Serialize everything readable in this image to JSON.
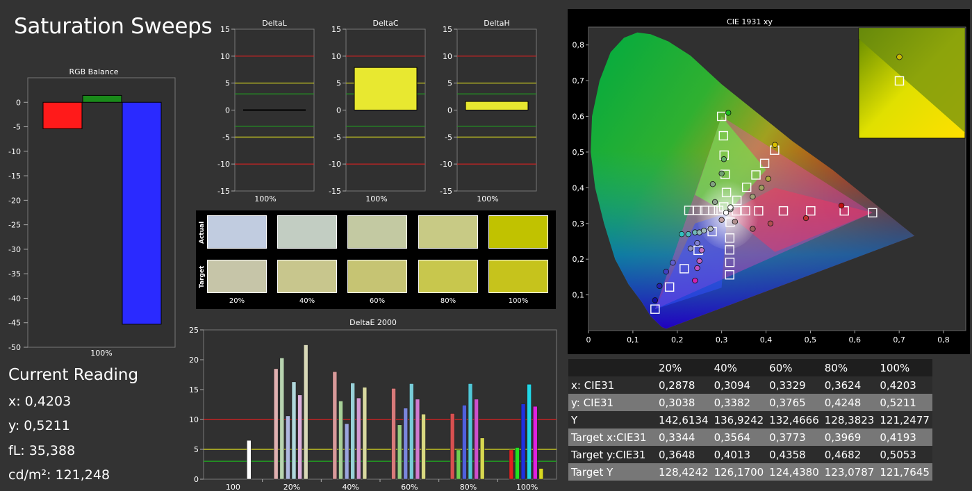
{
  "title": "Saturation Sweeps",
  "current_reading": {
    "heading": "Current Reading",
    "x_text": "x: 0,4203",
    "y_text": "y: 0,5211",
    "fl_text": "fL: 35,388",
    "cdm2_text": "cd/m²: 121,248"
  },
  "colors": {
    "background": "#333333",
    "red_line": "#e02020",
    "yellow_line": "#e0e020",
    "green_line": "#20a020",
    "bar_red": "#ff1a1a",
    "bar_green": "#1a8a1a",
    "bar_blue": "#2a2aff",
    "bar_yellow": "#e8e830"
  },
  "chart_data": [
    {
      "id": "rgb-balance",
      "type": "bar",
      "title": "RGB Balance",
      "categories": [
        "100%"
      ],
      "series": [
        {
          "color": "red",
          "values": [
            -5.4
          ]
        },
        {
          "color": "green",
          "values": [
            1.4
          ]
        },
        {
          "color": "blue",
          "values": [
            -45.3
          ]
        }
      ],
      "ylim": [
        -50,
        5
      ],
      "yticks": [
        "0",
        "-5",
        "-10",
        "-15",
        "-20",
        "-25",
        "-30",
        "-35",
        "-40",
        "-45",
        "-50"
      ]
    },
    {
      "id": "delta-l",
      "type": "bar",
      "title": "DeltaL",
      "categories": [
        "100%"
      ],
      "values": [
        0
      ],
      "ylim": [
        -15,
        15
      ],
      "yticks": [
        "15",
        "10",
        "5",
        "0",
        "-5",
        "-10",
        "-15"
      ]
    },
    {
      "id": "delta-c",
      "type": "bar",
      "title": "DeltaC",
      "categories": [
        "100%"
      ],
      "values": [
        7.9
      ],
      "ylim": [
        -15,
        15
      ],
      "yticks": [
        "15",
        "10",
        "5",
        "0",
        "-5",
        "-10",
        "-15"
      ]
    },
    {
      "id": "delta-h",
      "type": "bar",
      "title": "DeltaH",
      "categories": [
        "100%"
      ],
      "values": [
        1.6
      ],
      "ylim": [
        -15,
        15
      ],
      "yticks": [
        "15",
        "10",
        "5",
        "0",
        "-5",
        "-10",
        "-15"
      ]
    },
    {
      "id": "delta-e-2000",
      "type": "bar",
      "title": "DeltaE 2000",
      "categories": [
        "100",
        "20%",
        "40%",
        "60%",
        "80%",
        "100%"
      ],
      "groups": [
        {
          "label": "100",
          "bars": [
            {
              "value": 6.5,
              "color": "#ffffff"
            }
          ]
        },
        {
          "label": "20%",
          "bars": [
            {
              "value": 18.5,
              "color": "#e0b0b0"
            },
            {
              "value": 20.3,
              "color": "#b8d4b0"
            },
            {
              "value": 10.6,
              "color": "#b0b8e0"
            },
            {
              "value": 16.3,
              "color": "#b0d8dc"
            },
            {
              "value": 14.1,
              "color": "#dcb0dc"
            },
            {
              "value": 22.5,
              "color": "#d8d8b8"
            }
          ]
        },
        {
          "label": "40%",
          "bars": [
            {
              "value": 18.0,
              "color": "#d89a9a"
            },
            {
              "value": 13.1,
              "color": "#a8d098"
            },
            {
              "value": 9.3,
              "color": "#9aa4dc"
            },
            {
              "value": 16.1,
              "color": "#98d0d8"
            },
            {
              "value": 13.6,
              "color": "#d49ad4"
            },
            {
              "value": 15.4,
              "color": "#d8d8a0"
            }
          ]
        },
        {
          "label": "60%",
          "bars": [
            {
              "value": 15.2,
              "color": "#d87a7a"
            },
            {
              "value": 9.1,
              "color": "#98d080"
            },
            {
              "value": 11.9,
              "color": "#7a86dc"
            },
            {
              "value": 16.0,
              "color": "#78ccd8"
            },
            {
              "value": 13.4,
              "color": "#d07ad0"
            },
            {
              "value": 10.9,
              "color": "#d8d880"
            }
          ]
        },
        {
          "label": "80%",
          "bars": [
            {
              "value": 11.0,
              "color": "#d85050"
            },
            {
              "value": 4.9,
              "color": "#70d050"
            },
            {
              "value": 12.4,
              "color": "#5060dc"
            },
            {
              "value": 16.0,
              "color": "#50c8d8"
            },
            {
              "value": 13.4,
              "color": "#cc50cc"
            },
            {
              "value": 6.9,
              "color": "#d8d850"
            }
          ]
        },
        {
          "label": "100%",
          "bars": [
            {
              "value": 4.9,
              "color": "#e02020"
            },
            {
              "value": 5.3,
              "color": "#20e020"
            },
            {
              "value": 12.6,
              "color": "#2030e0"
            },
            {
              "value": 15.9,
              "color": "#20d8e8"
            },
            {
              "value": 12.2,
              "color": "#e020e0"
            },
            {
              "value": 1.8,
              "color": "#d8d820"
            }
          ]
        }
      ],
      "ylim": [
        0,
        25
      ],
      "yticks": [
        "25",
        "20",
        "15",
        "10",
        "5",
        "0"
      ]
    },
    {
      "id": "cie-1931-xy",
      "type": "scatter",
      "title": "CIE 1931 xy",
      "xlim": [
        0,
        0.85
      ],
      "ylim": [
        0,
        0.85
      ],
      "xticks": [
        "0",
        "0,1",
        "0,2",
        "0,3",
        "0,4",
        "0,5",
        "0,6",
        "0,7",
        "0,8"
      ],
      "yticks": [
        "0,1",
        "0,2",
        "0,3",
        "0,4",
        "0,5",
        "0,6",
        "0,7",
        "0,8"
      ],
      "gamut": [
        [
          0.64,
          0.33
        ],
        [
          0.3,
          0.6
        ],
        [
          0.15,
          0.06
        ]
      ],
      "targets": [
        [
          0.3334,
          0.3353
        ],
        [
          0.3537,
          0.3356
        ],
        [
          0.3832,
          0.3352
        ],
        [
          0.4391,
          0.3352
        ],
        [
          0.5007,
          0.3352
        ],
        [
          0.5763,
          0.3352
        ],
        [
          0.64,
          0.33
        ],
        [
          0.3048,
          0.3463
        ],
        [
          0.3109,
          0.3867
        ],
        [
          0.3079,
          0.4375
        ],
        [
          0.3056,
          0.4914
        ],
        [
          0.3041,
          0.5456
        ],
        [
          0.3,
          0.6
        ],
        [
          0.2933,
          0.3367
        ],
        [
          0.2802,
          0.3367
        ],
        [
          0.2616,
          0.3367
        ],
        [
          0.246,
          0.3367
        ],
        [
          0.2262,
          0.3367
        ],
        [
          0.3191,
          0.3036
        ],
        [
          0.3183,
          0.2592
        ],
        [
          0.318,
          0.226
        ],
        [
          0.3185,
          0.1911
        ],
        [
          0.318,
          0.1561
        ],
        [
          0.2787,
          0.2772
        ],
        [
          0.2471,
          0.2249
        ],
        [
          0.2157,
          0.1733
        ],
        [
          0.1826,
          0.122
        ],
        [
          0.15,
          0.06
        ],
        [
          0.3344,
          0.3648
        ],
        [
          0.3564,
          0.4013
        ],
        [
          0.3773,
          0.4358
        ],
        [
          0.3969,
          0.4682
        ],
        [
          0.4193,
          0.5053
        ]
      ],
      "actual": [
        {
          "x": 0.42,
          "y": 0.52,
          "color": "#d8c000"
        },
        {
          "x": 0.405,
          "y": 0.425,
          "color": "#b0a840"
        },
        {
          "x": 0.39,
          "y": 0.4,
          "color": "#a0a060"
        },
        {
          "x": 0.37,
          "y": 0.375,
          "color": "#a0a078"
        },
        {
          "x": 0.32,
          "y": 0.34,
          "color": "#c0c0c0"
        },
        {
          "x": 0.315,
          "y": 0.61,
          "color": "#20c020"
        },
        {
          "x": 0.305,
          "y": 0.48,
          "color": "#60b060"
        },
        {
          "x": 0.3,
          "y": 0.44,
          "color": "#70a070"
        },
        {
          "x": 0.28,
          "y": 0.41,
          "color": "#80a080"
        },
        {
          "x": 0.285,
          "y": 0.36,
          "color": "#90a090"
        },
        {
          "x": 0.21,
          "y": 0.27,
          "color": "#30c0c0"
        },
        {
          "x": 0.225,
          "y": 0.27,
          "color": "#50b8b8"
        },
        {
          "x": 0.24,
          "y": 0.275,
          "color": "#70b8b8"
        },
        {
          "x": 0.25,
          "y": 0.275,
          "color": "#90b8b8"
        },
        {
          "x": 0.26,
          "y": 0.28,
          "color": "#a0b8b8"
        },
        {
          "x": 0.275,
          "y": 0.285,
          "color": "#b0b8b8"
        },
        {
          "x": 0.57,
          "y": 0.35,
          "color": "#c01010"
        },
        {
          "x": 0.49,
          "y": 0.315,
          "color": "#c03030"
        },
        {
          "x": 0.41,
          "y": 0.3,
          "color": "#b05050"
        },
        {
          "x": 0.37,
          "y": 0.285,
          "color": "#a06060"
        },
        {
          "x": 0.33,
          "y": 0.305,
          "color": "#b09090"
        },
        {
          "x": 0.3,
          "y": 0.31,
          "color": "#c0a0a0"
        },
        {
          "x": 0.245,
          "y": 0.245,
          "color": "#8080d0"
        },
        {
          "x": 0.23,
          "y": 0.23,
          "color": "#9090c0"
        },
        {
          "x": 0.19,
          "y": 0.19,
          "color": "#6060d0"
        },
        {
          "x": 0.175,
          "y": 0.165,
          "color": "#4040c0"
        },
        {
          "x": 0.16,
          "y": 0.125,
          "color": "#2020b0"
        },
        {
          "x": 0.15,
          "y": 0.085,
          "color": "#1010a0"
        },
        {
          "x": 0.255,
          "y": 0.225,
          "color": "#c070c0"
        },
        {
          "x": 0.25,
          "y": 0.195,
          "color": "#c060c0"
        },
        {
          "x": 0.245,
          "y": 0.175,
          "color": "#c050c0"
        },
        {
          "x": 0.24,
          "y": 0.14,
          "color": "#d020b0"
        },
        {
          "x": 0.32,
          "y": 0.345,
          "color": "#ffffff"
        },
        {
          "x": 0.31,
          "y": 0.33,
          "color": "#ffffff"
        }
      ],
      "inset_target": [
        0.4193,
        0.5053
      ],
      "inset_actual": [
        0.4203,
        0.5211
      ]
    }
  ],
  "swatches": {
    "row_actual_label": "Actual",
    "row_target_label": "Target",
    "labels": [
      "20%",
      "40%",
      "60%",
      "80%",
      "100%"
    ],
    "actual_colors": [
      "#c1cce0",
      "#c2cdc2",
      "#c3c9a2",
      "#c8ca85",
      "#c1c200"
    ],
    "target_colors": [
      "#c6c5a8",
      "#c8c68d",
      "#c6c473",
      "#c8c74d",
      "#c6c31c"
    ]
  },
  "table": {
    "headers": [
      "",
      "20%",
      "40%",
      "60%",
      "80%",
      "100%"
    ],
    "rows": [
      {
        "label": "x: CIE31",
        "values": [
          "0,2878",
          "0,3094",
          "0,3329",
          "0,3624",
          "0,4203"
        ]
      },
      {
        "label": "y: CIE31",
        "values": [
          "0,3038",
          "0,3382",
          "0,3765",
          "0,4248",
          "0,5211"
        ]
      },
      {
        "label": "Y",
        "values": [
          "142,6134",
          "136,9242",
          "132,4666",
          "128,3823",
          "121,2477"
        ]
      },
      {
        "label": "Target x:CIE31",
        "values": [
          "0,3344",
          "0,3564",
          "0,3773",
          "0,3969",
          "0,4193"
        ]
      },
      {
        "label": "Target y:CIE31",
        "values": [
          "0,3648",
          "0,4013",
          "0,4358",
          "0,4682",
          "0,5053"
        ]
      },
      {
        "label": "Target Y",
        "values": [
          "128,4242",
          "126,1700",
          "124,4380",
          "123,0787",
          "121,7645"
        ]
      }
    ]
  }
}
